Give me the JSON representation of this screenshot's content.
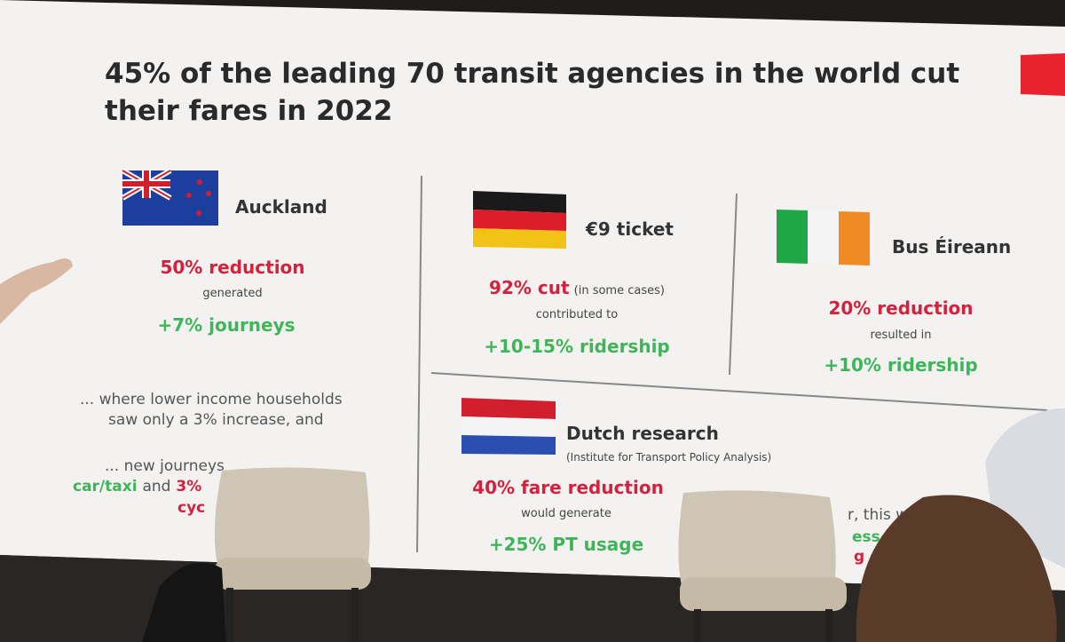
{
  "title": "45% of the leading 70 transit agencies in the world cut their fares in 2022",
  "auckland": {
    "name": "Auckland",
    "headline": "50% reduction",
    "connector": "generated",
    "result": "+7% journeys",
    "note_1": "... where lower income households",
    "note_2": "saw only a 3% increase, and",
    "note_3": "... new journeys",
    "note_4_green": "car/taxi",
    "note_4_text": "and",
    "note_4_red": "3%",
    "note_5": "cyc"
  },
  "germany": {
    "name": "€9 ticket",
    "headline": "92% cut",
    "qualifier": "(in some cases)",
    "connector": "contributed to",
    "result": "+10-15% ridership"
  },
  "ireland": {
    "name": "Bus Éireann",
    "headline": "20% reduction",
    "connector": "resulted in",
    "result": "+10% ridership"
  },
  "dutch": {
    "name": "Dutch research",
    "source": "(Institute for Transport Policy Analysis)",
    "headline": "40% fare reduction",
    "connector": "would generate",
    "result": "+25% PT usage",
    "fragment_1": "r, this w",
    "fragment_2": "ess ca",
    "fragment_3": "g o"
  }
}
